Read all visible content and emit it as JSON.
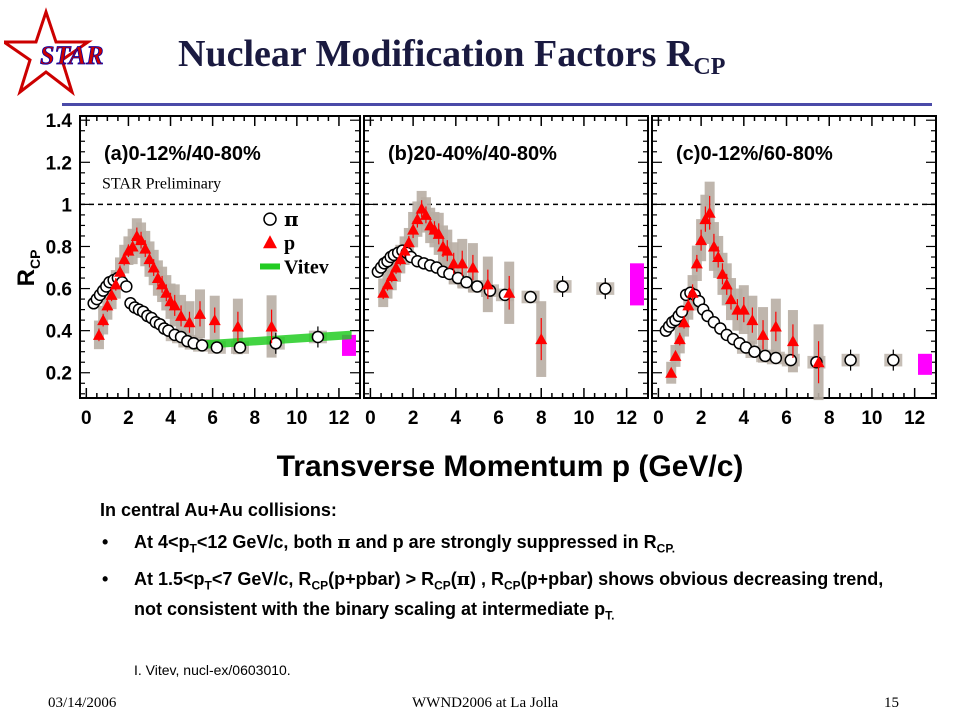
{
  "logo": {
    "text": "STAR"
  },
  "slide": {
    "title_main": "Nuclear Modification Factors R",
    "title_sub": "CP"
  },
  "colors": {
    "title": "#1a1a40",
    "rule": "#4a4aa8",
    "proton": "#ff0000",
    "pion": "#000000",
    "vitev": "#22cc22",
    "band": "#b8aea4",
    "sys_box": "#ff00ff"
  },
  "chart_data": {
    "type": "scatter",
    "ylabel": "R_CP",
    "xlabel": "Transverse Momentum p_T (GeV/c)",
    "xticks": [
      "0",
      "2",
      "4",
      "6",
      "8",
      "10",
      "12"
    ],
    "yticks": [
      "0.2",
      "0.4",
      "0.6",
      "0.8",
      "1",
      "1.2",
      "1.4"
    ],
    "xlim": [
      -0.3,
      13
    ],
    "ylim": [
      0.08,
      1.42
    ],
    "reference_line": 1,
    "annotation": "STAR Preliminary",
    "legend": {
      "pion": "π",
      "proton": "p",
      "vitev": "Vitev"
    },
    "panels": [
      {
        "label": "(a)0-12%/40-80%",
        "pion": {
          "x": [
            0.35,
            0.5,
            0.65,
            0.8,
            0.95,
            1.1,
            1.3,
            1.5,
            1.7,
            1.9,
            2.1,
            2.3,
            2.5,
            2.7,
            2.9,
            3.1,
            3.3,
            3.5,
            3.7,
            3.9,
            4.2,
            4.5,
            4.8,
            5.1,
            5.5,
            6.2,
            7.3,
            9.0,
            11.0
          ],
          "y": [
            0.53,
            0.55,
            0.57,
            0.59,
            0.61,
            0.63,
            0.64,
            0.65,
            0.63,
            0.61,
            0.53,
            0.51,
            0.5,
            0.49,
            0.47,
            0.46,
            0.44,
            0.43,
            0.41,
            0.4,
            0.38,
            0.37,
            0.35,
            0.34,
            0.33,
            0.32,
            0.32,
            0.34,
            0.37
          ]
        },
        "proton": {
          "x": [
            0.6,
            0.8,
            1.0,
            1.2,
            1.4,
            1.6,
            1.8,
            2.0,
            2.2,
            2.4,
            2.6,
            2.8,
            3.0,
            3.2,
            3.4,
            3.6,
            3.8,
            4.0,
            4.2,
            4.5,
            4.9,
            5.4,
            6.1,
            7.2,
            8.8
          ],
          "y": [
            0.38,
            0.45,
            0.52,
            0.57,
            0.62,
            0.68,
            0.74,
            0.78,
            0.8,
            0.85,
            0.83,
            0.79,
            0.74,
            0.7,
            0.65,
            0.62,
            0.58,
            0.54,
            0.52,
            0.47,
            0.44,
            0.48,
            0.45,
            0.42,
            0.42
          ],
          "err": [
            0.03,
            0.03,
            0.03,
            0.03,
            0.03,
            0.03,
            0.03,
            0.03,
            0.04,
            0.04,
            0.04,
            0.04,
            0.04,
            0.04,
            0.04,
            0.04,
            0.04,
            0.04,
            0.05,
            0.05,
            0.05,
            0.06,
            0.06,
            0.07,
            0.08
          ]
        },
        "vitev": {
          "x": [
            5,
            12.6
          ],
          "y": [
            0.31,
            0.36
          ],
          "y2": [
            0.35,
            0.4
          ]
        },
        "sys": 0.33
      },
      {
        "label": "(b)20-40%/40-80%",
        "pion": {
          "x": [
            0.35,
            0.5,
            0.65,
            0.8,
            0.95,
            1.1,
            1.3,
            1.5,
            1.7,
            1.9,
            2.2,
            2.5,
            2.8,
            3.1,
            3.4,
            3.7,
            4.1,
            4.5,
            5.0,
            5.6,
            6.3,
            7.5,
            9.0,
            11.0
          ],
          "y": [
            0.68,
            0.7,
            0.72,
            0.73,
            0.75,
            0.76,
            0.77,
            0.78,
            0.77,
            0.75,
            0.73,
            0.72,
            0.71,
            0.7,
            0.68,
            0.67,
            0.65,
            0.63,
            0.61,
            0.59,
            0.57,
            0.56,
            0.61,
            0.6
          ]
        },
        "proton": {
          "x": [
            0.6,
            0.8,
            1.0,
            1.2,
            1.4,
            1.6,
            1.8,
            2.0,
            2.2,
            2.4,
            2.6,
            2.8,
            3.0,
            3.2,
            3.4,
            3.6,
            3.9,
            4.3,
            4.8,
            5.5,
            6.5,
            8.0
          ],
          "y": [
            0.58,
            0.62,
            0.66,
            0.7,
            0.74,
            0.78,
            0.82,
            0.88,
            0.93,
            0.98,
            0.95,
            0.9,
            0.88,
            0.86,
            0.8,
            0.78,
            0.72,
            0.72,
            0.7,
            0.62,
            0.58,
            0.36
          ],
          "err": [
            0.03,
            0.03,
            0.03,
            0.03,
            0.03,
            0.03,
            0.03,
            0.04,
            0.04,
            0.04,
            0.04,
            0.04,
            0.04,
            0.05,
            0.05,
            0.05,
            0.05,
            0.06,
            0.06,
            0.07,
            0.08,
            0.1
          ]
        },
        "sys": 0.62
      },
      {
        "label": "(c)0-12%/60-80%",
        "pion": {
          "x": [
            0.35,
            0.5,
            0.65,
            0.8,
            0.95,
            1.1,
            1.3,
            1.5,
            1.7,
            1.9,
            2.1,
            2.3,
            2.6,
            2.9,
            3.2,
            3.5,
            3.8,
            4.1,
            4.5,
            5.0,
            5.5,
            6.2,
            7.4,
            9.0,
            11.0
          ],
          "y": [
            0.4,
            0.42,
            0.44,
            0.45,
            0.47,
            0.49,
            0.57,
            0.58,
            0.57,
            0.54,
            0.5,
            0.47,
            0.44,
            0.41,
            0.38,
            0.36,
            0.34,
            0.32,
            0.3,
            0.28,
            0.27,
            0.26,
            0.25,
            0.26,
            0.26
          ]
        },
        "proton": {
          "x": [
            0.6,
            0.8,
            1.0,
            1.2,
            1.4,
            1.6,
            1.8,
            2.0,
            2.2,
            2.4,
            2.6,
            2.8,
            3.0,
            3.2,
            3.4,
            3.7,
            4.0,
            4.4,
            4.9,
            5.5,
            6.3,
            7.5
          ],
          "y": [
            0.2,
            0.28,
            0.36,
            0.44,
            0.52,
            0.58,
            0.72,
            0.83,
            0.93,
            0.96,
            0.8,
            0.75,
            0.67,
            0.62,
            0.55,
            0.5,
            0.5,
            0.45,
            0.38,
            0.42,
            0.35,
            0.25
          ],
          "err": [
            0.02,
            0.02,
            0.03,
            0.03,
            0.03,
            0.04,
            0.04,
            0.05,
            0.06,
            0.08,
            0.06,
            0.05,
            0.05,
            0.05,
            0.05,
            0.05,
            0.06,
            0.06,
            0.07,
            0.07,
            0.08,
            0.1
          ]
        },
        "sys": 0.24
      }
    ]
  },
  "text": {
    "intro": "In central Au+Au collisions:",
    "b1_a": "At 4<p",
    "b1_b": "T",
    "b1_c": "<12 GeV/c,  both ",
    "b1_d": "π",
    "b1_e": " and p are strongly suppressed in R",
    "b1_f": "CP.",
    "b2_a": "At 1.5<p",
    "b2_b": "T",
    "b2_c": "<7 GeV/c, R",
    "b2_d": "CP",
    "b2_e": "(p+pbar) > R",
    "b2_f": "CP",
    "b2_g": "(",
    "b2_h": "π",
    "b2_i": ") , R",
    "b2_j": "CP",
    "b2_k": "(p+pbar) shows obvious decreasing trend,  not consistent with the binary scaling at intermediate p",
    "b2_l": "T.",
    "bullet": "•",
    "ref": "I. Vitev, nucl-ex/0603010."
  },
  "footer": {
    "date": "03/14/2006",
    "venue": "WWND2006 at La Jolla",
    "page": "15"
  }
}
